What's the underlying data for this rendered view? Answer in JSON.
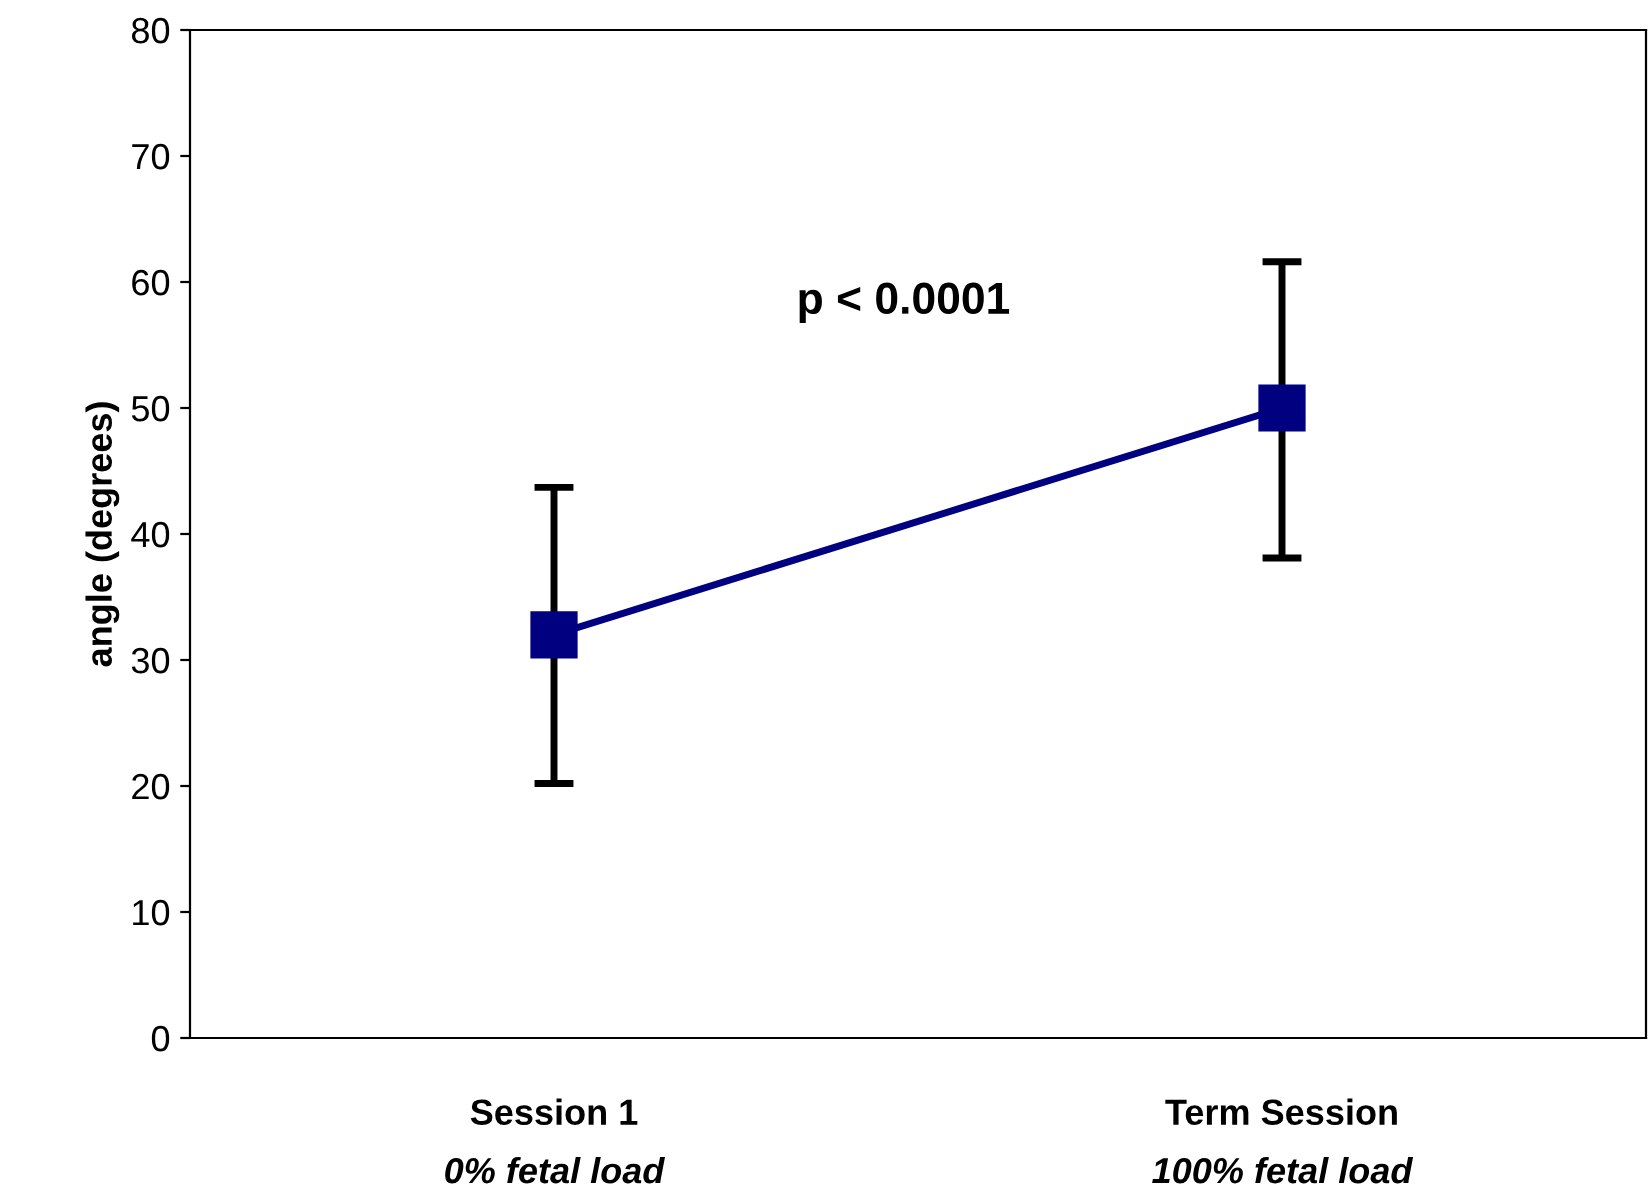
{
  "chart_data": {
    "type": "line",
    "ylabel": "angle (degrees)",
    "categories": [
      "Session 1\n0% fetal load",
      "Term Session\n100% fetal load"
    ],
    "series": [
      {
        "color": "#000080",
        "values": [
          32,
          50
        ],
        "errors": [
          [
            20.2,
            43.7
          ],
          [
            38.1,
            61.6
          ]
        ]
      }
    ],
    "ylim": [
      0,
      80
    ],
    "yticks": [
      0,
      10,
      20,
      30,
      40,
      50,
      60,
      70,
      80
    ],
    "annotations": [
      "p < 0.0001"
    ],
    "marker": "square",
    "line_style": "solid",
    "grid": false,
    "legend": false
  }
}
